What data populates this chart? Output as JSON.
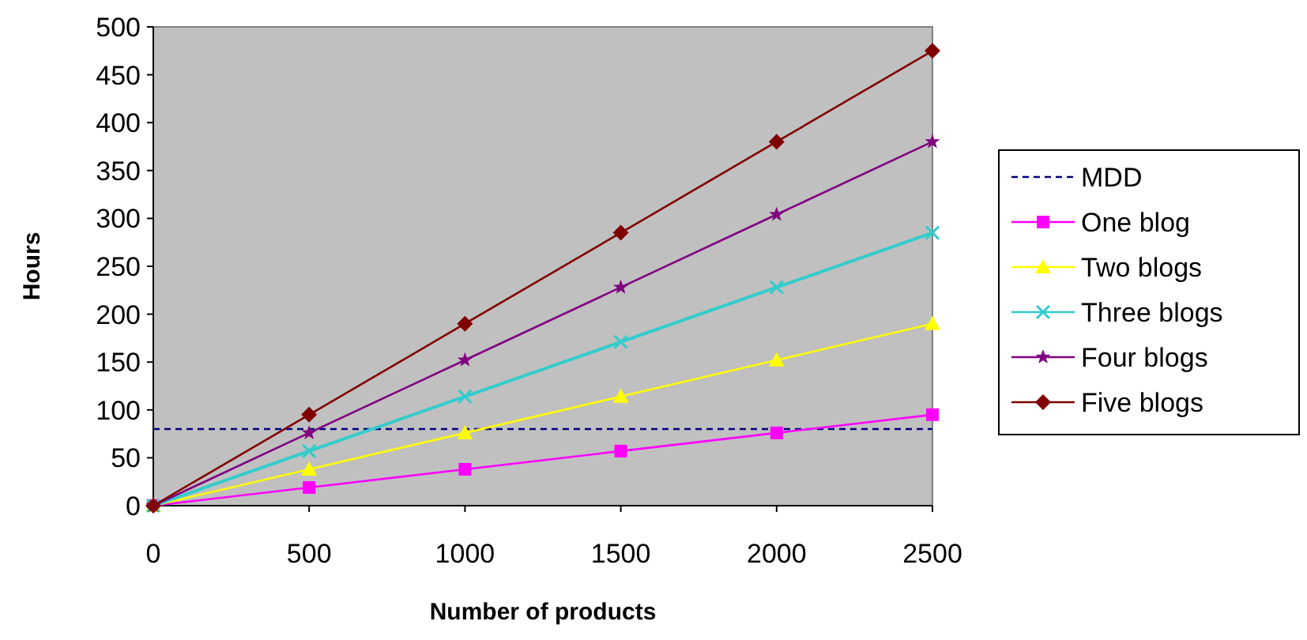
{
  "chart_data": {
    "type": "line",
    "xlabel": "Number of products",
    "ylabel": "Hours",
    "x": [
      0,
      500,
      1000,
      1500,
      2000,
      2500
    ],
    "xlim": [
      0,
      2500
    ],
    "xticks": [
      0,
      500,
      1000,
      1500,
      2000,
      2500
    ],
    "ylim": [
      0,
      500
    ],
    "yticks": [
      0,
      50,
      100,
      150,
      200,
      250,
      300,
      350,
      400,
      450,
      500
    ],
    "grid": false,
    "legend": "right",
    "series": [
      {
        "name": "MDD",
        "color": "#000080",
        "x": [
          0,
          2500
        ],
        "values": [
          80,
          80
        ],
        "line_style": "dashed",
        "marker": "none"
      },
      {
        "name": "One blog",
        "color": "#ff00ff",
        "values": [
          0,
          19,
          38,
          57,
          76,
          95
        ],
        "marker": "square"
      },
      {
        "name": "Two blogs",
        "color": "#ffff00",
        "values": [
          0,
          38,
          76,
          114,
          152,
          190
        ],
        "marker": "triangle"
      },
      {
        "name": "Three blogs",
        "color": "#33cccc",
        "values": [
          0,
          57,
          114,
          171,
          228,
          285
        ],
        "marker": "cross"
      },
      {
        "name": "Four blogs",
        "color": "#800080",
        "values": [
          0,
          76,
          152,
          228,
          304,
          380
        ],
        "marker": "star"
      },
      {
        "name": "Five blogs",
        "color": "#800000",
        "values": [
          0,
          95,
          190,
          285,
          380,
          475
        ],
        "marker": "diamond"
      }
    ]
  }
}
